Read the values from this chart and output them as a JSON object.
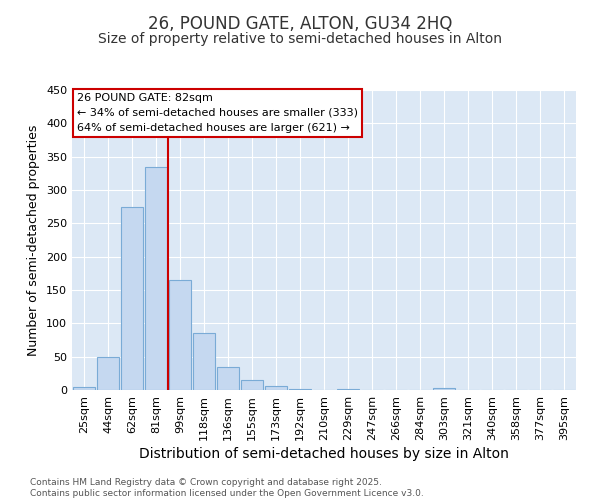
{
  "title": "26, POUND GATE, ALTON, GU34 2HQ",
  "subtitle": "Size of property relative to semi-detached houses in Alton",
  "xlabel": "Distribution of semi-detached houses by size in Alton",
  "ylabel": "Number of semi-detached properties",
  "categories": [
    "25sqm",
    "44sqm",
    "62sqm",
    "81sqm",
    "99sqm",
    "118sqm",
    "136sqm",
    "155sqm",
    "173sqm",
    "192sqm",
    "210sqm",
    "229sqm",
    "247sqm",
    "266sqm",
    "284sqm",
    "303sqm",
    "321sqm",
    "340sqm",
    "358sqm",
    "377sqm",
    "395sqm"
  ],
  "values": [
    5,
    50,
    275,
    335,
    165,
    85,
    35,
    15,
    6,
    2,
    0,
    2,
    0,
    0,
    0,
    3,
    0,
    0,
    0,
    0,
    0
  ],
  "bar_color": "#c5d8f0",
  "bar_edge_color": "#7aabd6",
  "background_color": "#dce8f5",
  "vline_x": 3.5,
  "vline_color": "#cc0000",
  "annotation_text": "26 POUND GATE: 82sqm\n← 34% of semi-detached houses are smaller (333)\n64% of semi-detached houses are larger (621) →",
  "annotation_box_color": "#ffffff",
  "annotation_box_edge": "#cc0000",
  "ylim": [
    0,
    450
  ],
  "yticks": [
    0,
    50,
    100,
    150,
    200,
    250,
    300,
    350,
    400,
    450
  ],
  "footer": "Contains HM Land Registry data © Crown copyright and database right 2025.\nContains public sector information licensed under the Open Government Licence v3.0.",
  "title_fontsize": 12,
  "subtitle_fontsize": 10,
  "tick_fontsize": 8,
  "ylabel_fontsize": 9,
  "xlabel_fontsize": 10,
  "annotation_fontsize": 8
}
